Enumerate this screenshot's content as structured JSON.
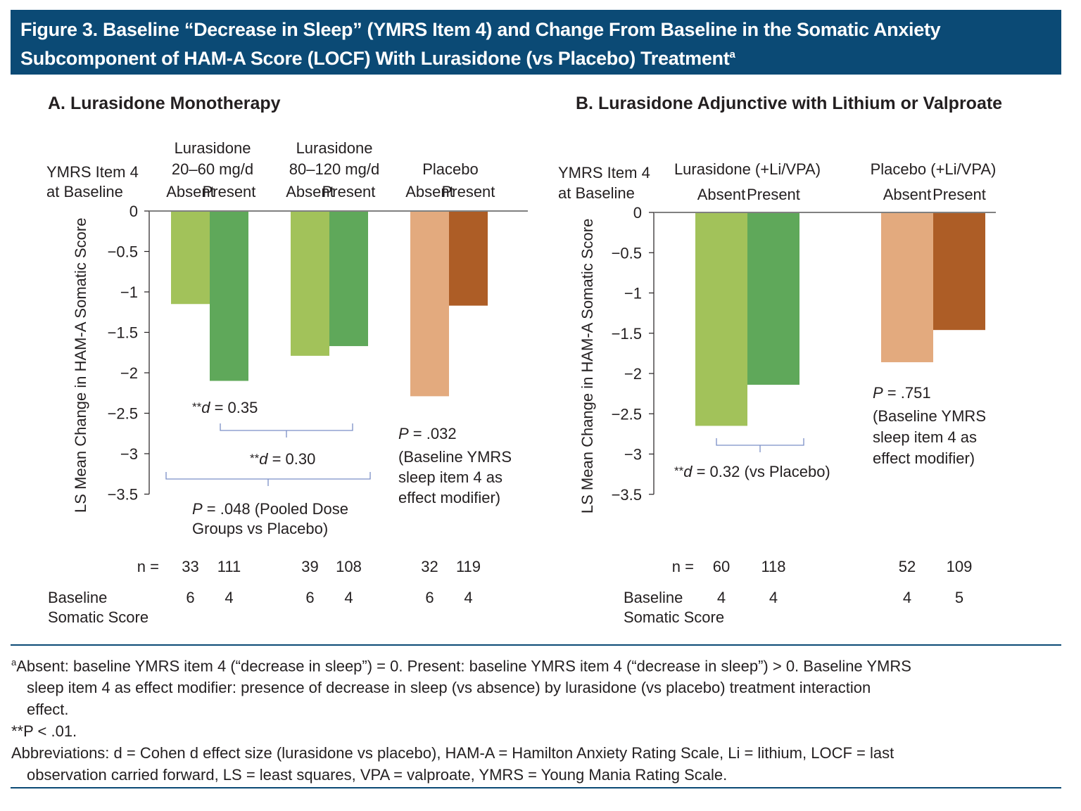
{
  "title": {
    "line1": "Figure 3. Baseline “Decrease in Sleep” (YMRS Item 4) and Change From Baseline in the Somatic Anxiety",
    "line2": "Subcomponent of HAM-A Score (LOCF) With Lurasidone (vs Placebo) Treatment",
    "sup": "a"
  },
  "colors": {
    "lur_absent": "#a2c25a",
    "lur_present": "#5fa85a",
    "pbo_absent": "#e3aa7e",
    "pbo_present": "#ad5d26",
    "title_bg": "#0b4a75",
    "bracket": "#7b8fc6"
  },
  "chart_data": [
    {
      "type": "bar",
      "title": "A. Lurasidone Monotherapy",
      "ylabel": "LS Mean Change in HAM-A Somatic Score",
      "ylim": [
        -3.5,
        0
      ],
      "yticks": [
        "0",
        "−0.5",
        "−1",
        "−1.5",
        "−2",
        "−2.5",
        "−3",
        "−3.5"
      ],
      "row_header": [
        "YMRS Item 4",
        "at Baseline"
      ],
      "groups": [
        {
          "name_lines": [
            "Lurasidone",
            "20–60 mg/d"
          ],
          "color_key": "lur",
          "bars": [
            {
              "label": "Absent",
              "value": -1.15,
              "n": "33",
              "baseline": "6"
            },
            {
              "label": "Present",
              "value": -2.1,
              "n": "111",
              "baseline": "4"
            }
          ]
        },
        {
          "name_lines": [
            "Lurasidone",
            "80–120 mg/d"
          ],
          "color_key": "lur",
          "bars": [
            {
              "label": "Absent",
              "value": -1.79,
              "n": "39",
              "baseline": "6"
            },
            {
              "label": "Present",
              "value": -1.67,
              "n": "108",
              "baseline": "4"
            }
          ]
        },
        {
          "name_lines": [
            "",
            "Placebo"
          ],
          "color_key": "pbo",
          "bars": [
            {
              "label": "Absent",
              "value": -2.29,
              "n": "32",
              "baseline": "6"
            },
            {
              "label": "Present",
              "value": -1.17,
              "n": "119",
              "baseline": "4"
            }
          ]
        }
      ],
      "annotations": {
        "d1": "**d = 0.35",
        "d2": "**d = 0.30",
        "p_pooled": [
          "P = .048 (Pooled Dose",
          "Groups vs Placebo)"
        ],
        "p_modifier": [
          "P = .032",
          "(Baseline YMRS",
          "sleep item 4 as",
          "effect modifier)"
        ]
      },
      "n_label": "n =",
      "baseline_label": [
        "Baseline",
        "Somatic Score"
      ]
    },
    {
      "type": "bar",
      "title": "B. Lurasidone Adjunctive with Lithium or Valproate",
      "ylabel": "LS Mean Change in HAM-A Somatic Score",
      "ylim": [
        -3.5,
        0
      ],
      "yticks": [
        "0",
        "−0.5",
        "−1",
        "−1.5",
        "−2",
        "−2.5",
        "−3",
        "−3.5"
      ],
      "row_header": [
        "YMRS Item 4",
        "at Baseline"
      ],
      "groups": [
        {
          "name_lines": [
            "Lurasidone (+Li/VPA)"
          ],
          "color_key": "lur",
          "bars": [
            {
              "label": "Absent",
              "value": -2.65,
              "n": "60",
              "baseline": "4"
            },
            {
              "label": "Present",
              "value": -2.14,
              "n": "118",
              "baseline": "4"
            }
          ]
        },
        {
          "name_lines": [
            "Placebo (+Li/VPA)"
          ],
          "color_key": "pbo",
          "bars": [
            {
              "label": "Absent",
              "value": -1.86,
              "n": "52",
              "baseline": "4"
            },
            {
              "label": "Present",
              "value": -1.46,
              "n": "109",
              "baseline": "5"
            }
          ]
        }
      ],
      "annotations": {
        "d1": "**d = 0.32 (vs Placebo)",
        "p_modifier": [
          "P = .751",
          "(Baseline YMRS",
          "sleep item 4 as",
          "effect modifier)"
        ]
      },
      "n_label": "n =",
      "baseline_label": [
        "Baseline",
        "Somatic Score"
      ]
    }
  ],
  "footnotes": {
    "a_sup": "a",
    "a_line1": "Absent: baseline YMRS item 4 (“decrease in sleep”) = 0. Present: baseline YMRS item 4 (“decrease in sleep”) > 0. Baseline YMRS",
    "a_line2": "sleep item 4 as effect modifier: presence of decrease in sleep (vs absence) by lurasidone (vs placebo) treatment interaction",
    "a_line3": "effect.",
    "sig": "**P < .01.",
    "abbr_line1": "Abbreviations: d = Cohen d effect size (lurasidone vs placebo), HAM-A = Hamilton Anxiety Rating Scale, Li = lithium, LOCF = last",
    "abbr_line2": "observation carried forward, LS = least squares, VPA = valproate, YMRS = Young Mania Rating Scale."
  }
}
